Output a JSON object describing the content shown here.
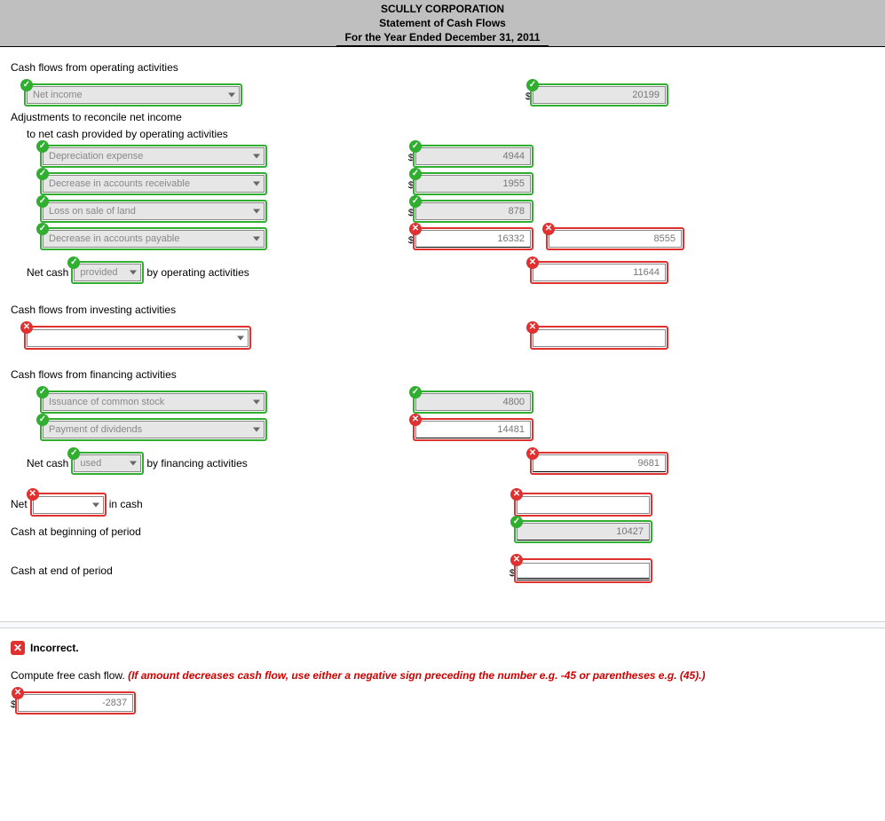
{
  "header": {
    "company": "SCULLY CORPORATION",
    "title": "Statement of Cash Flows",
    "period": "For the Year Ended December 31, 2011"
  },
  "colors": {
    "header_bg": "#bfbfbf",
    "correct_border": "#2fae2f",
    "incorrect_border": "#e03030",
    "input_bg": "#e6e6e6",
    "input_text": "#888888",
    "hint_text": "#d00000"
  },
  "sections": {
    "operating_header": "Cash flows from operating activities",
    "investing_header": "Cash flows from investing activities",
    "financing_header": "Cash flows from financing activities",
    "adjustments_line1": "Adjustments to reconcile net income",
    "adjustments_line2": "to net cash provided by operating activities",
    "netcash_prefix": "Net cash",
    "netcash_op_suffix": "by operating activities",
    "netcash_fin_suffix": "by financing activities",
    "net_prefix": "Net",
    "net_suffix": "in cash",
    "beginning": "Cash at beginning of period",
    "ending": "Cash at end of period"
  },
  "operating": {
    "net_income_label": "Net income",
    "net_income_value": "20199",
    "adjustments": [
      {
        "label": "Depreciation expense",
        "value": "4944",
        "label_ok": true,
        "value_ok": true
      },
      {
        "label": "Decrease in accounts receivable",
        "value": "1955",
        "label_ok": true,
        "value_ok": true
      },
      {
        "label": "Loss on sale of land",
        "value": "878",
        "label_ok": true,
        "value_ok": true
      },
      {
        "label": "Decrease in accounts payable",
        "value": "16332",
        "label_ok": true,
        "value_ok": false
      }
    ],
    "adjustments_total": "8555",
    "adjustments_total_ok": false,
    "provided_used": "provided",
    "provided_used_ok": true,
    "net_cash_value": "11644",
    "net_cash_ok": false
  },
  "investing": {
    "item_label": "",
    "item_label_ok": false,
    "item_value": "",
    "item_value_ok": false
  },
  "financing": {
    "items": [
      {
        "label": "Issuance of common stock",
        "value": "4800",
        "label_ok": true,
        "value_ok": true
      },
      {
        "label": "Payment of dividends",
        "value": "14481",
        "label_ok": true,
        "value_ok": false
      }
    ],
    "provided_used": "used",
    "provided_used_ok": true,
    "net_cash_value": "9681",
    "net_cash_ok": false
  },
  "net_change": {
    "direction": "",
    "direction_ok": false,
    "value": "",
    "value_ok": false
  },
  "beginning_cash": {
    "value": "10427",
    "ok": true
  },
  "ending_cash": {
    "value": "",
    "ok": false
  },
  "feedback": {
    "status": "Incorrect.",
    "instruction_plain": "Compute free cash flow. ",
    "instruction_hint": "(If amount decreases cash flow, use either a negative sign preceding the number e.g. -45 or parentheses e.g. (45).)"
  },
  "free_cash_flow": {
    "value": "-2837",
    "ok": false
  }
}
